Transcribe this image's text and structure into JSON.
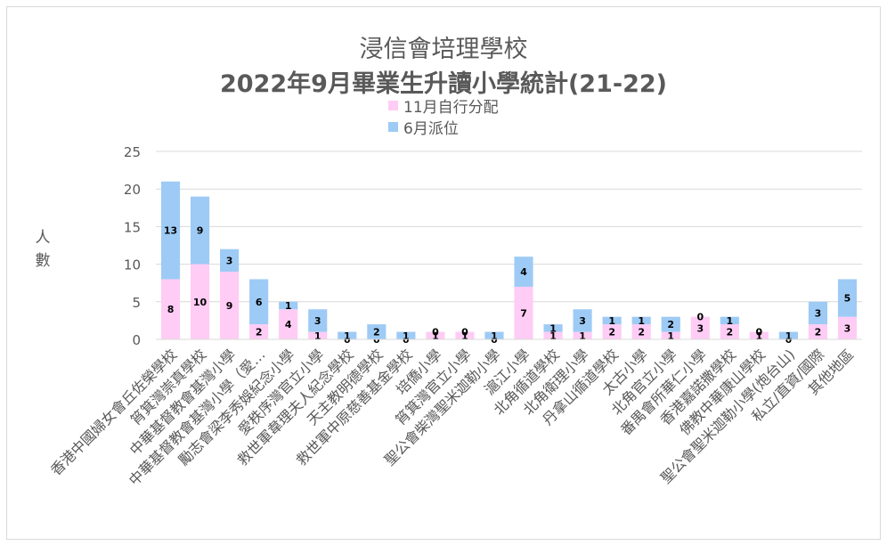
{
  "chart_data": {
    "type": "bar",
    "stacked": true,
    "title": "浸信會培理學校",
    "subtitle": "2022年9月畢業生升讀小學統計(21-22)",
    "ylabel": "人數",
    "ylim": [
      0,
      25
    ],
    "yticks": [
      0,
      5,
      10,
      15,
      20,
      25
    ],
    "grid": true,
    "legend_position": "top",
    "categories": [
      "香港中國婦女會丘佐榮學校",
      "筲箕灣崇真學校",
      "中華基督教會基灣小學",
      "中華基督教會基灣小學（愛…",
      "勵志會梁李秀娛紀念小學",
      "愛秩序灣官立小學",
      "救世軍韋理夫人紀念學校",
      "天主教明德學校",
      "救世軍中原慈善基金學校",
      "培僑小學",
      "筲箕灣官立小學",
      "聖公會柴灣聖米迦勒小學",
      "滬江小學",
      "北角循道學校",
      "北角衛理小學",
      "丹拿山循道學校",
      "太古小學",
      "北角官立小學",
      "番禺會所華仁小學",
      "香港嘉諾撒學校",
      "佛教中華康山學校",
      "聖公會聖米迦勒小學(炮台山)",
      "私立/直資/國際",
      "其他地區"
    ],
    "series": [
      {
        "name": "11月自行分配",
        "color": "#ffccf5",
        "values": [
          8,
          10,
          9,
          2,
          4,
          1,
          0,
          0,
          0,
          1,
          1,
          0,
          7,
          1,
          1,
          2,
          2,
          1,
          3,
          2,
          1,
          0,
          2,
          3
        ]
      },
      {
        "name": "6月派位",
        "color": "#9dcbf5",
        "values": [
          13,
          9,
          3,
          6,
          1,
          3,
          1,
          2,
          1,
          0,
          0,
          1,
          4,
          1,
          3,
          1,
          1,
          2,
          0,
          1,
          0,
          1,
          3,
          5
        ]
      }
    ]
  }
}
